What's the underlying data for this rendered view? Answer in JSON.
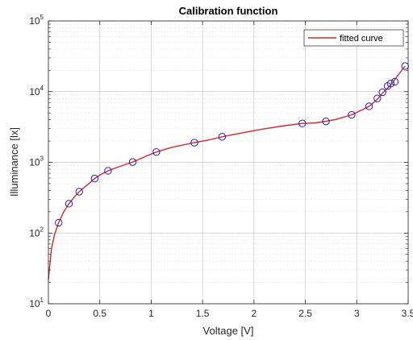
{
  "chart_data": {
    "type": "line",
    "title": "Calibration function",
    "xlabel": "Voltage [V]",
    "ylabel": "Illuminance [lx]",
    "xlim": [
      0,
      3.5
    ],
    "ylim": [
      10,
      100000
    ],
    "yscale": "log",
    "grid": true,
    "minor_grid": true,
    "legend_position": "top-right",
    "x_ticks": [
      "0",
      "0.5",
      "1",
      "1.5",
      "2",
      "2.5",
      "3",
      "3.5"
    ],
    "y_ticks": [
      {
        "base": "10",
        "exp": "1"
      },
      {
        "base": "10",
        "exp": "2"
      },
      {
        "base": "10",
        "exp": "3"
      },
      {
        "base": "10",
        "exp": "4"
      },
      {
        "base": "10",
        "exp": "5"
      }
    ],
    "series": [
      {
        "name": "fitted curve",
        "kind": "line",
        "color": "#d62728",
        "x": [
          0,
          0.03,
          0.06,
          0.1,
          0.15,
          0.2,
          0.25,
          0.3,
          0.4,
          0.45,
          0.5,
          0.58,
          0.7,
          0.82,
          0.95,
          1.05,
          1.2,
          1.42,
          1.55,
          1.69,
          1.9,
          2.1,
          2.3,
          2.47,
          2.6,
          2.7,
          2.8,
          2.95,
          3.05,
          3.12,
          3.2,
          3.25,
          3.3,
          3.35,
          3.4,
          3.47
        ],
        "y": [
          22,
          60,
          95,
          140,
          200,
          260,
          320,
          385,
          510,
          590,
          660,
          760,
          880,
          1010,
          1220,
          1400,
          1630,
          1900,
          2060,
          2300,
          2630,
          2980,
          3300,
          3550,
          3620,
          3800,
          4050,
          4700,
          5500,
          6200,
          7800,
          9500,
          11200,
          13500,
          17000,
          23000
        ]
      },
      {
        "name": "",
        "kind": "markers",
        "color": "#1f1fbf",
        "x": [
          0.1,
          0.2,
          0.3,
          0.45,
          0.58,
          0.82,
          1.05,
          1.42,
          1.69,
          2.47,
          2.7,
          2.95,
          3.12,
          3.2,
          3.25,
          3.3,
          3.33,
          3.37,
          3.47
        ],
        "y": [
          140,
          260,
          385,
          590,
          760,
          1010,
          1400,
          1900,
          2300,
          3550,
          3800,
          4700,
          6200,
          8000,
          9800,
          12000,
          13000,
          13800,
          23000
        ]
      }
    ]
  }
}
